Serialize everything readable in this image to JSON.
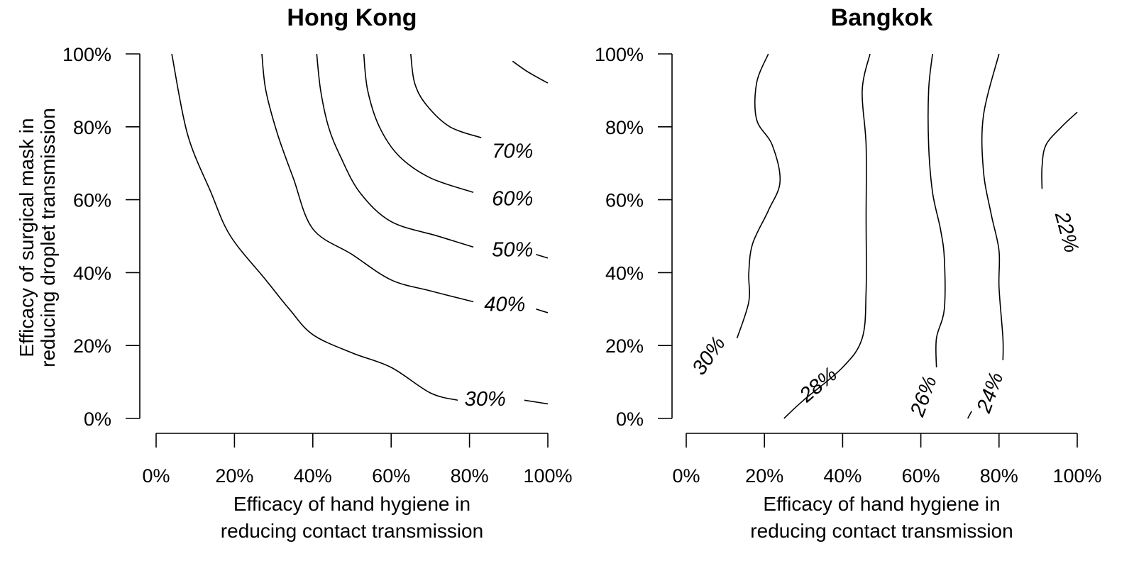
{
  "figure": {
    "ylabel": [
      "Efficacy of surgical mask in",
      "reducing droplet transmission"
    ],
    "xlabel": [
      "Efficacy of hand hygiene in",
      "reducing contact transmission"
    ]
  },
  "chart_data": [
    {
      "type": "contour",
      "title": "Hong Kong",
      "xlabel": "Efficacy of hand hygiene in reducing contact transmission",
      "ylabel": "Efficacy of surgical mask in reducing droplet transmission",
      "xlim": [
        0,
        100
      ],
      "ylim": [
        0,
        100
      ],
      "xticks": [
        "0%",
        "20%",
        "40%",
        "60%",
        "80%",
        "100%"
      ],
      "yticks": [
        "0%",
        "20%",
        "40%",
        "60%",
        "80%",
        "100%"
      ],
      "contours": [
        {
          "level": "30%",
          "points": [
            [
              4,
              100
            ],
            [
              8,
              78
            ],
            [
              14,
              62
            ],
            [
              19,
              50
            ],
            [
              28,
              38
            ],
            [
              34,
              30
            ],
            [
              40,
              23
            ],
            [
              50,
              18
            ],
            [
              60,
              14
            ],
            [
              70,
              7
            ],
            [
              77,
              5
            ]
          ],
          "tail": [
            [
              94,
              5
            ],
            [
              100,
              4
            ]
          ]
        },
        {
          "level": "40%",
          "points": [
            [
              27,
              100
            ],
            [
              28,
              90
            ],
            [
              31,
              78
            ],
            [
              35,
              66
            ],
            [
              40,
              52
            ],
            [
              50,
              45
            ],
            [
              60,
              38
            ],
            [
              70,
              35
            ],
            [
              81,
              32
            ]
          ],
          "tail": [
            [
              97,
              30
            ],
            [
              100,
              29
            ]
          ]
        },
        {
          "level": "50%",
          "points": [
            [
              41,
              100
            ],
            [
              42,
              90
            ],
            [
              44,
              80
            ],
            [
              47,
              72
            ],
            [
              52,
              62
            ],
            [
              60,
              54
            ],
            [
              72,
              50
            ],
            [
              81,
              47
            ]
          ],
          "tail": [
            [
              97,
              45
            ],
            [
              100,
              44
            ]
          ]
        },
        {
          "level": "60%",
          "points": [
            [
              53,
              100
            ],
            [
              54,
              90
            ],
            [
              57,
              80
            ],
            [
              62,
              72
            ],
            [
              70,
              66
            ],
            [
              81,
              62
            ]
          ]
        },
        {
          "level": "70%",
          "points": [
            [
              65,
              100
            ],
            [
              66,
              92
            ],
            [
              69,
              86
            ],
            [
              75,
              80
            ],
            [
              83,
              77
            ]
          ]
        },
        {
          "level": "",
          "points": [
            [
              91,
              98
            ],
            [
              95,
              95
            ],
            [
              100,
              92
            ]
          ]
        }
      ]
    },
    {
      "type": "contour",
      "title": "Bangkok",
      "xlabel": "Efficacy of hand hygiene in reducing contact transmission",
      "ylabel": "",
      "xlim": [
        0,
        100
      ],
      "ylim": [
        0,
        100
      ],
      "xticks": [
        "0%",
        "20%",
        "40%",
        "60%",
        "80%",
        "100%"
      ],
      "yticks": [
        "0%",
        "20%",
        "40%",
        "60%",
        "80%",
        "100%"
      ],
      "contours": [
        {
          "level": "30%",
          "points": [
            [
              13,
              22
            ],
            [
              16,
              32
            ],
            [
              16,
              40
            ],
            [
              17,
              48
            ],
            [
              21,
              57
            ],
            [
              24,
              65
            ],
            [
              22,
              75
            ],
            [
              18,
              82
            ],
            [
              18,
              92
            ],
            [
              21,
              100
            ]
          ]
        },
        {
          "level": "28%",
          "points": [
            [
              25,
              0
            ],
            [
              30,
              5
            ],
            [
              40,
              14
            ],
            [
              45,
              22
            ],
            [
              46,
              35
            ],
            [
              46,
              55
            ],
            [
              46,
              75
            ],
            [
              45,
              90
            ],
            [
              47,
              100
            ]
          ]
        },
        {
          "level": "26%",
          "points": [
            [
              64,
              14
            ],
            [
              64,
              22
            ],
            [
              66,
              30
            ],
            [
              66,
              44
            ],
            [
              65,
              52
            ],
            [
              63,
              62
            ],
            [
              62,
              75
            ],
            [
              62,
              90
            ],
            [
              63,
              100
            ]
          ]
        },
        {
          "level": "24%",
          "points": [
            [
              81,
              16
            ],
            [
              81,
              22
            ],
            [
              80,
              36
            ],
            [
              80,
              46
            ],
            [
              78,
              56
            ],
            [
              76,
              68
            ],
            [
              76,
              83
            ],
            [
              80,
              100
            ]
          ]
        },
        {
          "level": "22%",
          "points": [
            [
              91,
              63
            ],
            [
              91,
              69
            ],
            [
              92,
              75
            ],
            [
              96,
              80
            ],
            [
              100,
              84
            ]
          ]
        },
        {
          "level": "",
          "points": [
            [
              72,
              0
            ],
            [
              73,
              2
            ]
          ]
        }
      ]
    }
  ]
}
